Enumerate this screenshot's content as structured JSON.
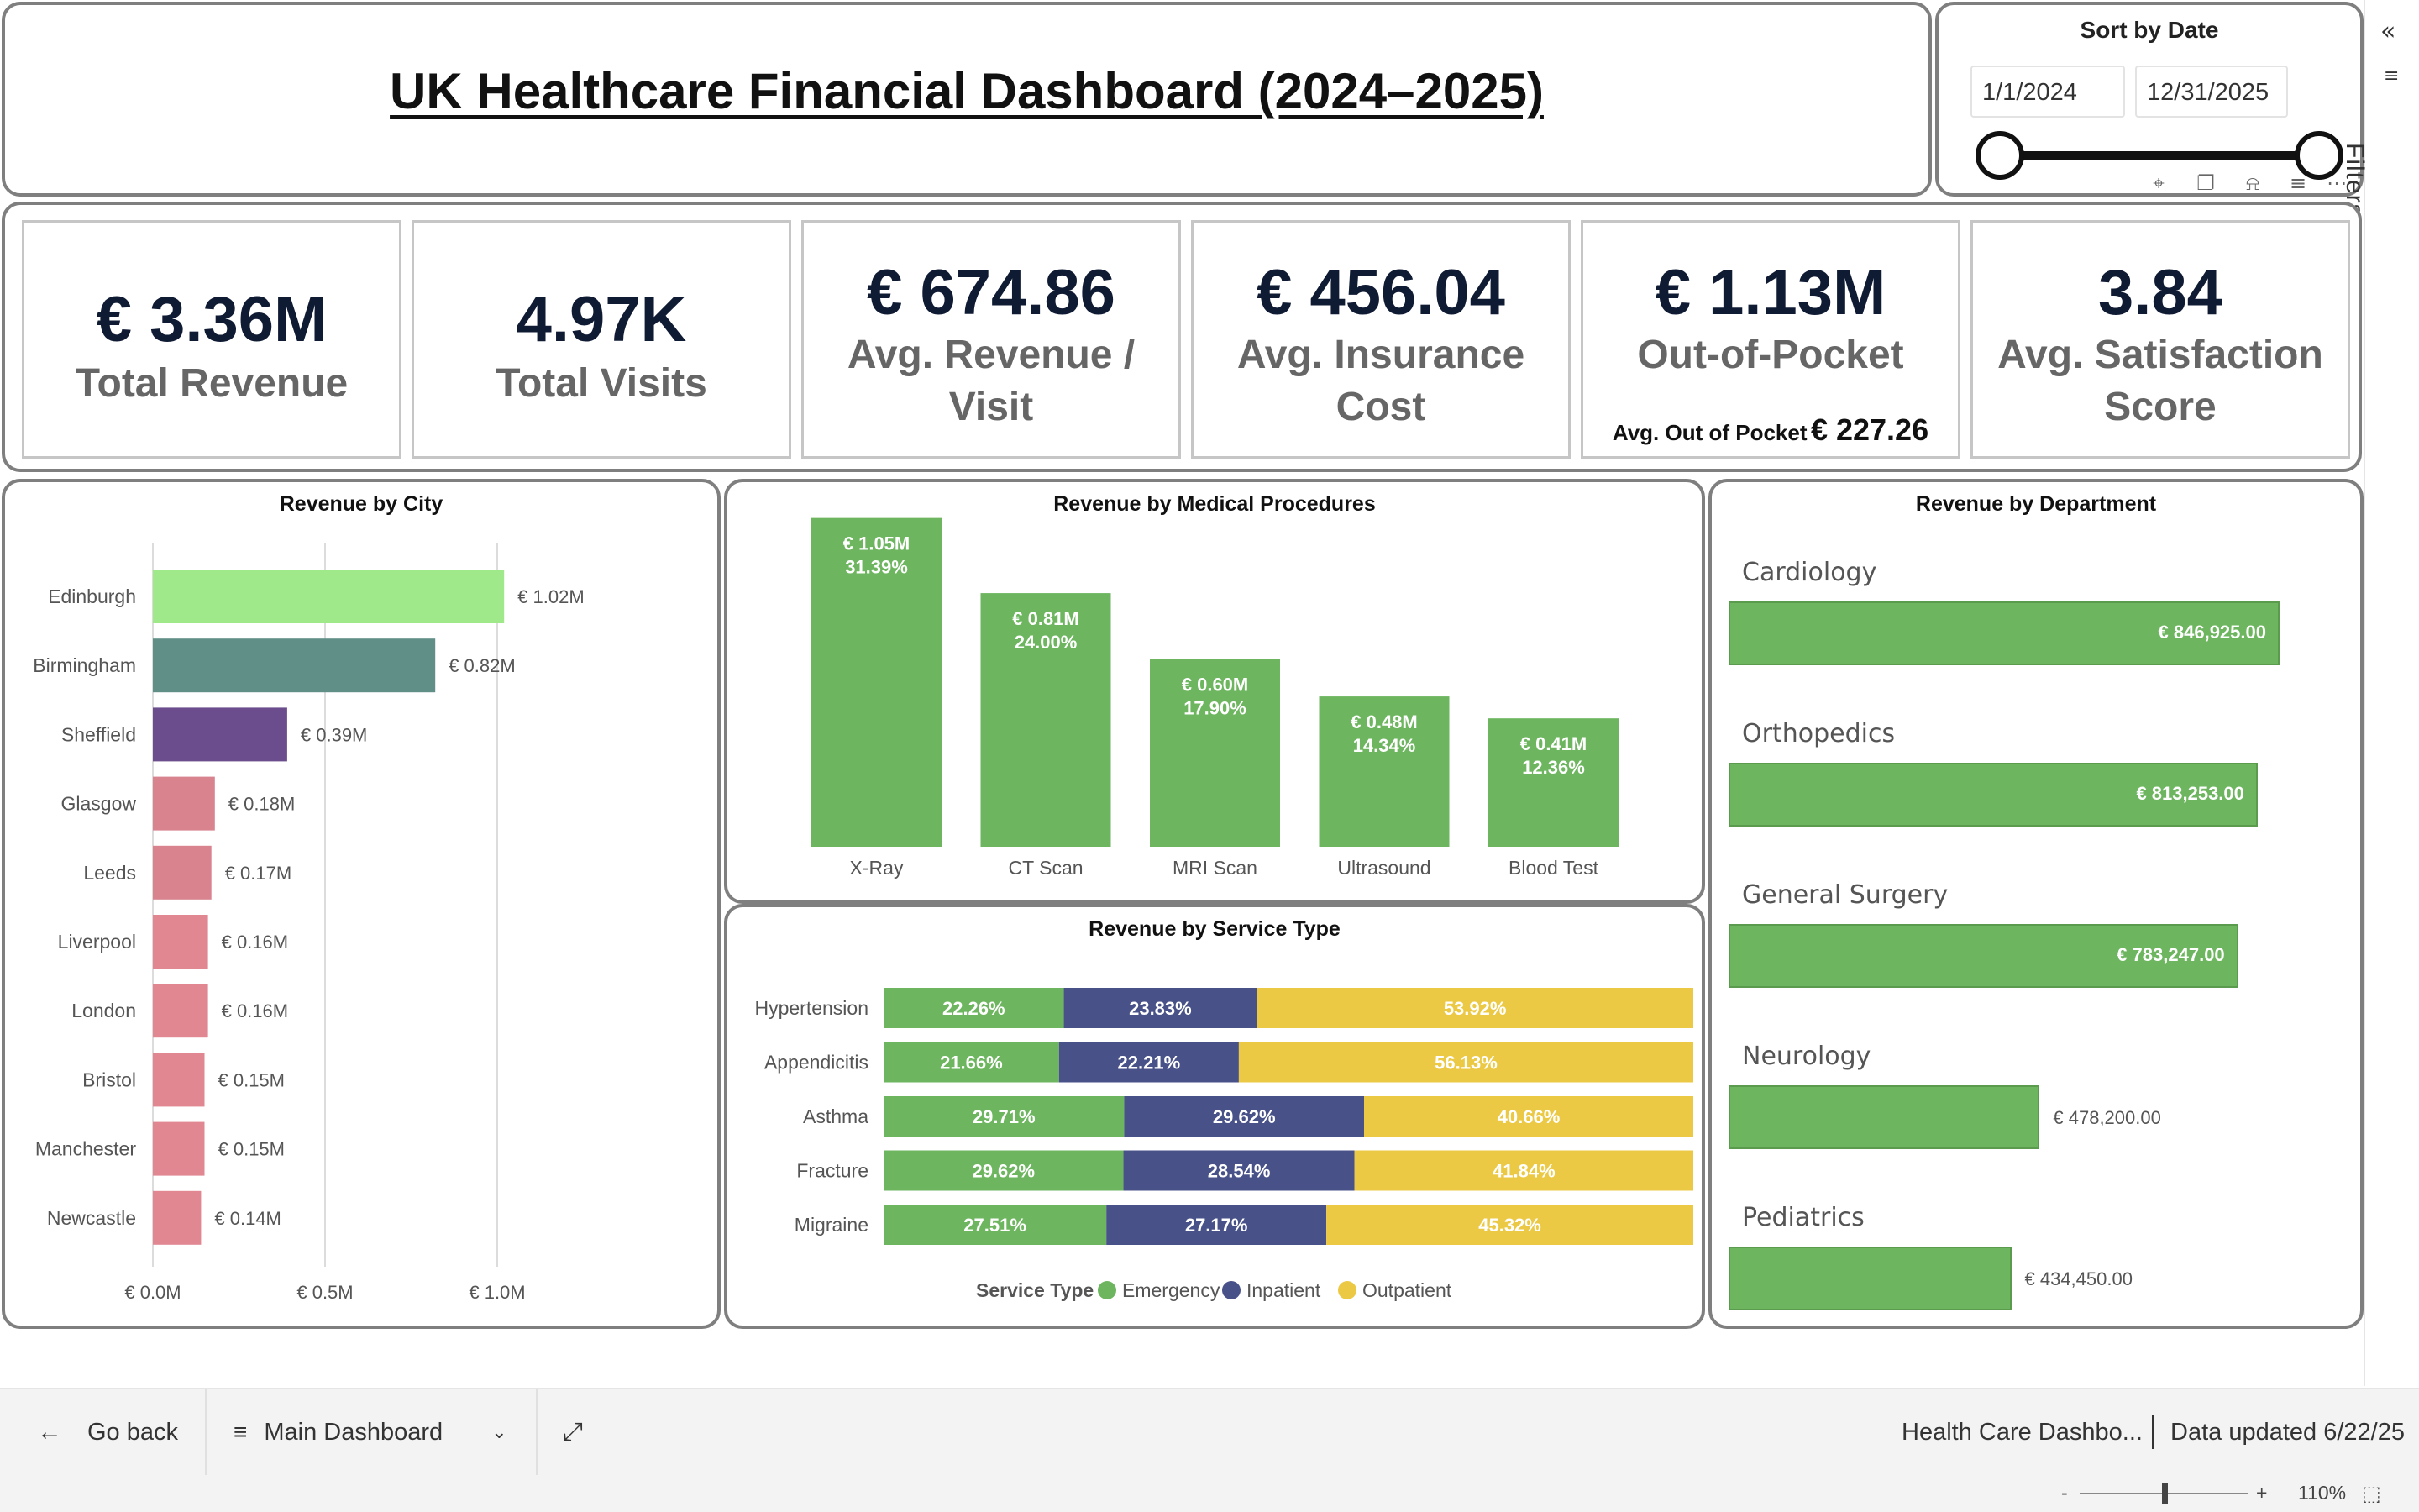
{
  "header": {
    "title": "UK Healthcare Financial Dashboard (2024–2025)"
  },
  "date_slicer": {
    "title": "Sort by Date",
    "start": "1/1/2024",
    "end": "12/31/2025",
    "icons": [
      "pin-icon",
      "copy-icon",
      "bell-icon",
      "filter-icon",
      "more-options-icon"
    ]
  },
  "filters_pane": {
    "label": "Filters",
    "collapse_icon": "double-chevron-left-icon"
  },
  "kpis": {
    "total_revenue": {
      "value": "€ 3.36M",
      "label": "Total Revenue"
    },
    "total_visits": {
      "value": "4.97K",
      "label": "Total Visits"
    },
    "avg_revenue_per_visit": {
      "value": "€ 674.86",
      "label_line1": "Avg. Revenue /",
      "label_line2": "Visit"
    },
    "avg_insurance_cost": {
      "value": "€ 456.04",
      "label_line1": "Avg. Insurance",
      "label_line2": "Cost"
    },
    "out_of_pocket": {
      "value": "€ 1.13M",
      "label": "Out-of-Pocket",
      "sub_label": "Avg. Out of Pocket",
      "sub_value": "€ 227.26"
    },
    "avg_satisfaction": {
      "value": "3.84",
      "label_line1": "Avg. Satisfaction",
      "label_line2": "Score"
    }
  },
  "chart_data": [
    {
      "type": "bar",
      "orientation": "horizontal",
      "title": "Revenue by City",
      "categories": [
        "Edinburgh",
        "Birmingham",
        "Sheffield",
        "Glasgow",
        "Leeds",
        "Liverpool",
        "London",
        "Bristol",
        "Manchester",
        "Newcastle"
      ],
      "values": [
        1.02,
        0.82,
        0.39,
        0.18,
        0.17,
        0.16,
        0.16,
        0.15,
        0.15,
        0.14
      ],
      "value_labels": [
        "€ 1.02M",
        "€ 0.82M",
        "€ 0.39M",
        "€ 0.18M",
        "€ 0.17M",
        "€ 0.16M",
        "€ 0.16M",
        "€ 0.15M",
        "€ 0.15M",
        "€ 0.14M"
      ],
      "colors": [
        "#9fe98b",
        "#5f8f86",
        "#6b4c8c",
        "#d9838f",
        "#d9838f",
        "#e08792",
        "#e08792",
        "#e08792",
        "#e08792",
        "#e08792"
      ],
      "x_ticks": [
        0,
        0.5,
        1.0
      ],
      "x_tick_labels": [
        "€ 0.0M",
        "€ 0.5M",
        "€ 1.0M"
      ],
      "xlim": [
        0,
        1.2
      ],
      "unit": "€ M",
      "grid": true
    },
    {
      "type": "bar",
      "title": "Revenue by Medical Procedures",
      "categories": [
        "X-Ray",
        "CT Scan",
        "MRI Scan",
        "Ultrasound",
        "Blood Test"
      ],
      "values": [
        1.05,
        0.81,
        0.6,
        0.48,
        0.41
      ],
      "value_labels": [
        "€ 1.05M",
        "€ 0.81M",
        "€ 0.60M",
        "€ 0.48M",
        "€ 0.41M"
      ],
      "percent_labels": [
        "31.39%",
        "24.00%",
        "17.90%",
        "14.34%",
        "12.36%"
      ],
      "color": "#6db65f",
      "ylim": [
        0,
        1.1
      ]
    },
    {
      "type": "bar",
      "stacked": "100%",
      "orientation": "horizontal",
      "title": "Revenue by Service Type",
      "categories": [
        "Hypertension",
        "Appendicitis",
        "Asthma",
        "Fracture",
        "Migraine"
      ],
      "legend_title": "Service Type",
      "legend_position": "bottom",
      "series": [
        {
          "name": "Emergency",
          "color": "#6db65f",
          "values": [
            22.26,
            21.66,
            29.71,
            29.62,
            27.51
          ]
        },
        {
          "name": "Inpatient",
          "color": "#485288",
          "values": [
            23.83,
            22.21,
            29.62,
            28.54,
            27.17
          ]
        },
        {
          "name": "Outpatient",
          "color": "#ecc944",
          "values": [
            53.92,
            56.13,
            40.66,
            41.84,
            45.32
          ]
        }
      ]
    },
    {
      "type": "bar",
      "orientation": "horizontal",
      "title": "Revenue by Department",
      "categories": [
        "Cardiology",
        "Orthopedics",
        "General Surgery",
        "Neurology",
        "Pediatrics"
      ],
      "values": [
        846925.0,
        813253.0,
        783247.0,
        478200.0,
        434450.0
      ],
      "value_labels": [
        "€ 846,925.00",
        "€ 813,253.00",
        "€ 783,247.00",
        "€ 478,200.00",
        "€ 434,450.00"
      ],
      "color": "#6db65f"
    }
  ],
  "footer": {
    "go_back": "Go back",
    "page_selector": "Main Dashboard",
    "report_name": "Health Care Dashbo...",
    "data_updated": "Data updated 6/22/25"
  },
  "status_bar": {
    "zoom_minus": "-",
    "zoom_plus": "+",
    "zoom_level": "110%"
  }
}
